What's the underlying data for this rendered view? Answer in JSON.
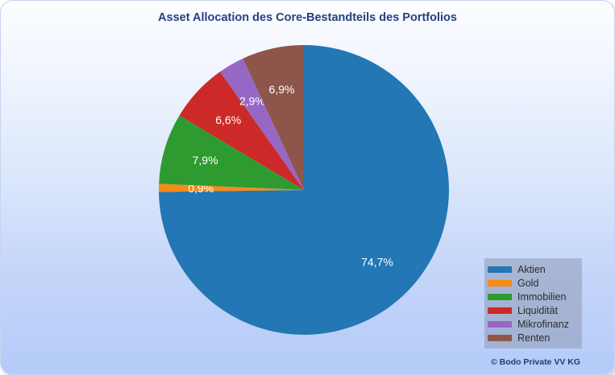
{
  "header": {
    "title": "Asset Allocation des Core-Bestandteils des Portfolios"
  },
  "footer": {
    "copyright": "© Bodo Private VV KG"
  },
  "theme": {
    "title_color": "#26417F",
    "panel_border": "#C7D4F0",
    "background_top": "#FCFDFF",
    "background_bottom": "#B4CBF8",
    "legend_background": "#A6B2CC",
    "legend_text_color": "#2B2B2B",
    "data_label_color": "#FFFFFF"
  },
  "chart_data": {
    "type": "pie",
    "title": "Asset Allocation des Core-Bestandteils des Portfolios",
    "categories": [
      "Aktien",
      "Gold",
      "Immobilien",
      "Liquidität",
      "Mikrofinanz",
      "Renten"
    ],
    "values": [
      74.7,
      0.9,
      7.9,
      6.6,
      2.9,
      6.9
    ],
    "data_labels": [
      "74,7%",
      "0,9%",
      "7,9%",
      "6,6%",
      "2,9%",
      "6,9%"
    ],
    "colors": [
      "#2277B4",
      "#F78B17",
      "#2E9B31",
      "#CC2A28",
      "#9767C6",
      "#8E564B"
    ],
    "start_angle_deg": 0,
    "direction": "clockwise",
    "legend_position": "bottom-right",
    "grid": false
  }
}
